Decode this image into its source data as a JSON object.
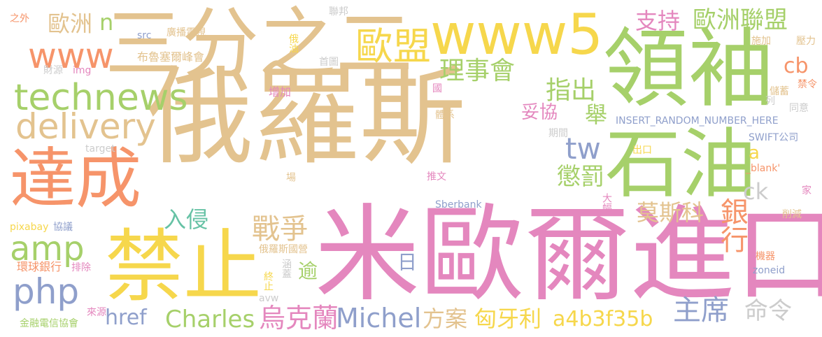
{
  "words": [
    {
      "text": "俄羅斯",
      "color": "#e3c38f"
    },
    {
      "text": "米歐爾進口",
      "color": "#e487be"
    },
    {
      "text": "三分之二",
      "color": "#e3c38f"
    },
    {
      "text": "領袖",
      "color": "#a6d06a"
    },
    {
      "text": "禁止",
      "color": "#f6d74c"
    },
    {
      "text": "達成",
      "color": "#f6946a"
    },
    {
      "text": "石油",
      "color": "#a6d06a"
    },
    {
      "text": "www5",
      "color": "#f6d74c"
    },
    {
      "text": "歐盟",
      "color": "#f6d74c"
    },
    {
      "text": "www",
      "color": "#f6946a"
    },
    {
      "text": "technews",
      "color": "#a6d06a"
    },
    {
      "text": "delivery",
      "color": "#e3c38f"
    },
    {
      "text": "amp",
      "color": "#a6d06a"
    },
    {
      "text": "php",
      "color": "#8f9fcb"
    },
    {
      "text": "Charles",
      "color": "#a6d06a"
    },
    {
      "text": "烏克蘭",
      "color": "#e487be"
    },
    {
      "text": "Michel",
      "color": "#8f9fcb"
    },
    {
      "text": "歐洲",
      "color": "#e3c38f"
    },
    {
      "text": "n",
      "color": "#a6d06a"
    },
    {
      "text": "支持",
      "color": "#e487be"
    },
    {
      "text": "歐洲聯盟",
      "color": "#a6d06a"
    },
    {
      "text": "理事會",
      "color": "#a6d06a"
    },
    {
      "text": "指出",
      "color": "#a6d06a"
    },
    {
      "text": "舉",
      "color": "#a6d06a"
    },
    {
      "text": "妥協",
      "color": "#e487be"
    },
    {
      "text": "tw",
      "color": "#8f9fcb"
    },
    {
      "text": "懲罰",
      "color": "#a6d06a"
    },
    {
      "text": "戰爭",
      "color": "#e3c38f"
    },
    {
      "text": "入侵",
      "color": "#66c2a5"
    },
    {
      "text": "莫斯科",
      "color": "#e3c38f"
    },
    {
      "text": "銀行",
      "color": "#f6946a"
    },
    {
      "text": "ck",
      "color": "#cccccc"
    },
    {
      "text": "a",
      "color": "#f6d74c"
    },
    {
      "text": "cb",
      "color": "#f6946a"
    },
    {
      "text": "日",
      "color": "#8f9fcb"
    },
    {
      "text": "逾",
      "color": "#a6d06a"
    },
    {
      "text": "href",
      "color": "#8f9fcb"
    },
    {
      "text": "方案",
      "color": "#e3c38f"
    },
    {
      "text": "匈牙利",
      "color": "#f6d74c"
    },
    {
      "text": "a4b3f35b",
      "color": "#f6d74c"
    },
    {
      "text": "主席",
      "color": "#8f9fcb"
    },
    {
      "text": "命令",
      "color": "#cccccc"
    },
    {
      "text": "之外",
      "color": "#f6946a"
    },
    {
      "text": "src",
      "color": "#8f9fcb"
    },
    {
      "text": "廣播電視",
      "color": "#e3c38f"
    },
    {
      "text": "布魯塞爾峰會",
      "color": "#e3c38f"
    },
    {
      "text": "財源",
      "color": "#cccccc"
    },
    {
      "text": "img",
      "color": "#e487be"
    },
    {
      "text": "target",
      "color": "#cccccc"
    },
    {
      "text": "聯邦",
      "color": "#cccccc"
    },
    {
      "text": "俄油",
      "color": "#f6d74c"
    },
    {
      "text": "首圖",
      "color": "#cccccc"
    },
    {
      "text": "增加",
      "color": "#e487be"
    },
    {
      "text": "國",
      "color": "#e487be"
    },
    {
      "text": "體系",
      "color": "#e3c38f"
    },
    {
      "text": "施加",
      "color": "#e3c38f"
    },
    {
      "text": "壓力",
      "color": "#e3c38f"
    },
    {
      "text": "儲蓄",
      "color": "#e3c38f"
    },
    {
      "text": "禁令",
      "color": "#f6946a"
    },
    {
      "text": "列",
      "color": "#cccccc"
    },
    {
      "text": "同意",
      "color": "#cccccc"
    },
    {
      "text": "INSERT_RANDOM_NUMBER_HERE",
      "color": "#8f9fcb"
    },
    {
      "text": "期間",
      "color": "#cccccc"
    },
    {
      "text": "SWIFT公司",
      "color": "#8f9fcb"
    },
    {
      "text": "出口",
      "color": "#f6d74c"
    },
    {
      "text": "_blank'",
      "color": "#f6946a"
    },
    {
      "text": "家",
      "color": "#e487be"
    },
    {
      "text": "推文",
      "color": "#e487be"
    },
    {
      "text": "場",
      "color": "#e3c38f"
    },
    {
      "text": "Sberbank",
      "color": "#8f9fcb"
    },
    {
      "text": "大幅",
      "color": "#e487be"
    },
    {
      "text": "削減",
      "color": "#e3c38f"
    },
    {
      "text": "pixabay",
      "color": "#f6d74c"
    },
    {
      "text": "協議",
      "color": "#8f9fcb"
    },
    {
      "text": "俄羅斯國營",
      "color": "#e3c38f"
    },
    {
      "text": "機器",
      "color": "#f6946a"
    },
    {
      "text": "zoneid",
      "color": "#8f9fcb"
    },
    {
      "text": "環球銀行",
      "color": "#f6946a"
    },
    {
      "text": "排除",
      "color": "#e487be"
    },
    {
      "text": "涵蓋",
      "color": "#cccccc"
    },
    {
      "text": "終止",
      "color": "#f6d74c"
    },
    {
      "text": "avw",
      "color": "#cccccc"
    },
    {
      "text": "來源",
      "color": "#e487be"
    },
    {
      "text": "金融電信協會",
      "color": "#a6d06a"
    }
  ]
}
